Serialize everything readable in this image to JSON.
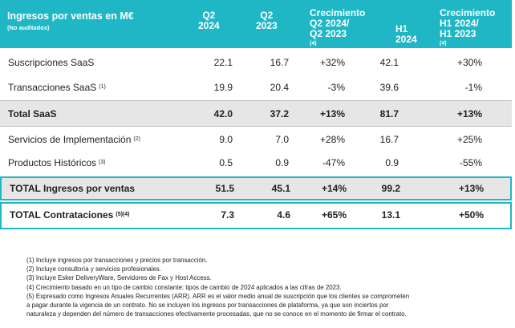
{
  "header": {
    "title": "Ingresos por ventas en M€",
    "subtitle": "(No auditados)",
    "columns": [
      {
        "lines": [
          "Q2",
          "2024"
        ],
        "note": ""
      },
      {
        "lines": [
          "Q2",
          "2023"
        ],
        "note": ""
      },
      {
        "lines": [
          "Crecimiento",
          "Q2 2024/",
          "Q2 2023"
        ],
        "note": "(4)"
      },
      {
        "lines": [
          "H1",
          "2024"
        ],
        "note": ""
      },
      {
        "lines": [
          "Crecimiento",
          "H1 2024/",
          "H1 2023"
        ],
        "note": "(4)"
      }
    ]
  },
  "rows": [
    {
      "label": "Suscripciones SaaS",
      "note": "",
      "values": [
        "22.1",
        "16.7",
        "+32%",
        "42.1",
        "+30%"
      ]
    },
    {
      "label": "Transacciones SaaS",
      "note": "(1)",
      "values": [
        "19.9",
        "20.4",
        "-3%",
        "39.6",
        "-1%"
      ]
    },
    {
      "label": "Total SaaS",
      "note": "",
      "values": [
        "42.0",
        "37.2",
        "+13%",
        "81.7",
        "+13%"
      ]
    },
    {
      "label": "Servicios de Implementación",
      "note": "(2)",
      "values": [
        "9.0",
        "7.0",
        "+28%",
        "16.7",
        "+25%"
      ]
    },
    {
      "label": "Productos Históricos",
      "note": "(3)",
      "values": [
        "0.5",
        "0.9",
        "-47%",
        "0.9",
        "-55%"
      ]
    },
    {
      "label": "TOTAL Ingresos por ventas",
      "note": "",
      "values": [
        "51.5",
        "45.1",
        "+14%",
        "99.2",
        "+13%"
      ]
    },
    {
      "label": "TOTAL Contrataciones",
      "note": "(5)(4)",
      "values": [
        "7.3",
        "4.6",
        "+65%",
        "13.1",
        "+50%"
      ]
    }
  ],
  "footnotes": [
    "(1) Incluye ingresos por transacciones y precios por transacción.",
    "(2) Incluye consultoría y servicios profesionales.",
    "(3) Incluye Esker DeliveryWare, Servidores de Fax y Host Access.",
    "(4) Crecimiento basado en un tipo de cambio constante: tipos de cambio de 2024 aplicados a las cifras de 2023.",
    "(5) Expresado como Ingresos Anuales Recurrentes (ARR). ARR es el valor medio anual de suscripción que los clientes se comprometen",
    "a pagar durante la vigencia de un contrato. No se incluyen los ingresos por transacciones de plataforma, ya que son inciertos por",
    "naturaleza y dependen del número de transacciones efectivamente procesadas, que no se conoce en el momento de firmar el contrato."
  ],
  "colors": {
    "accent": "#1fb7c5",
    "shade": "#e6e6e6"
  }
}
